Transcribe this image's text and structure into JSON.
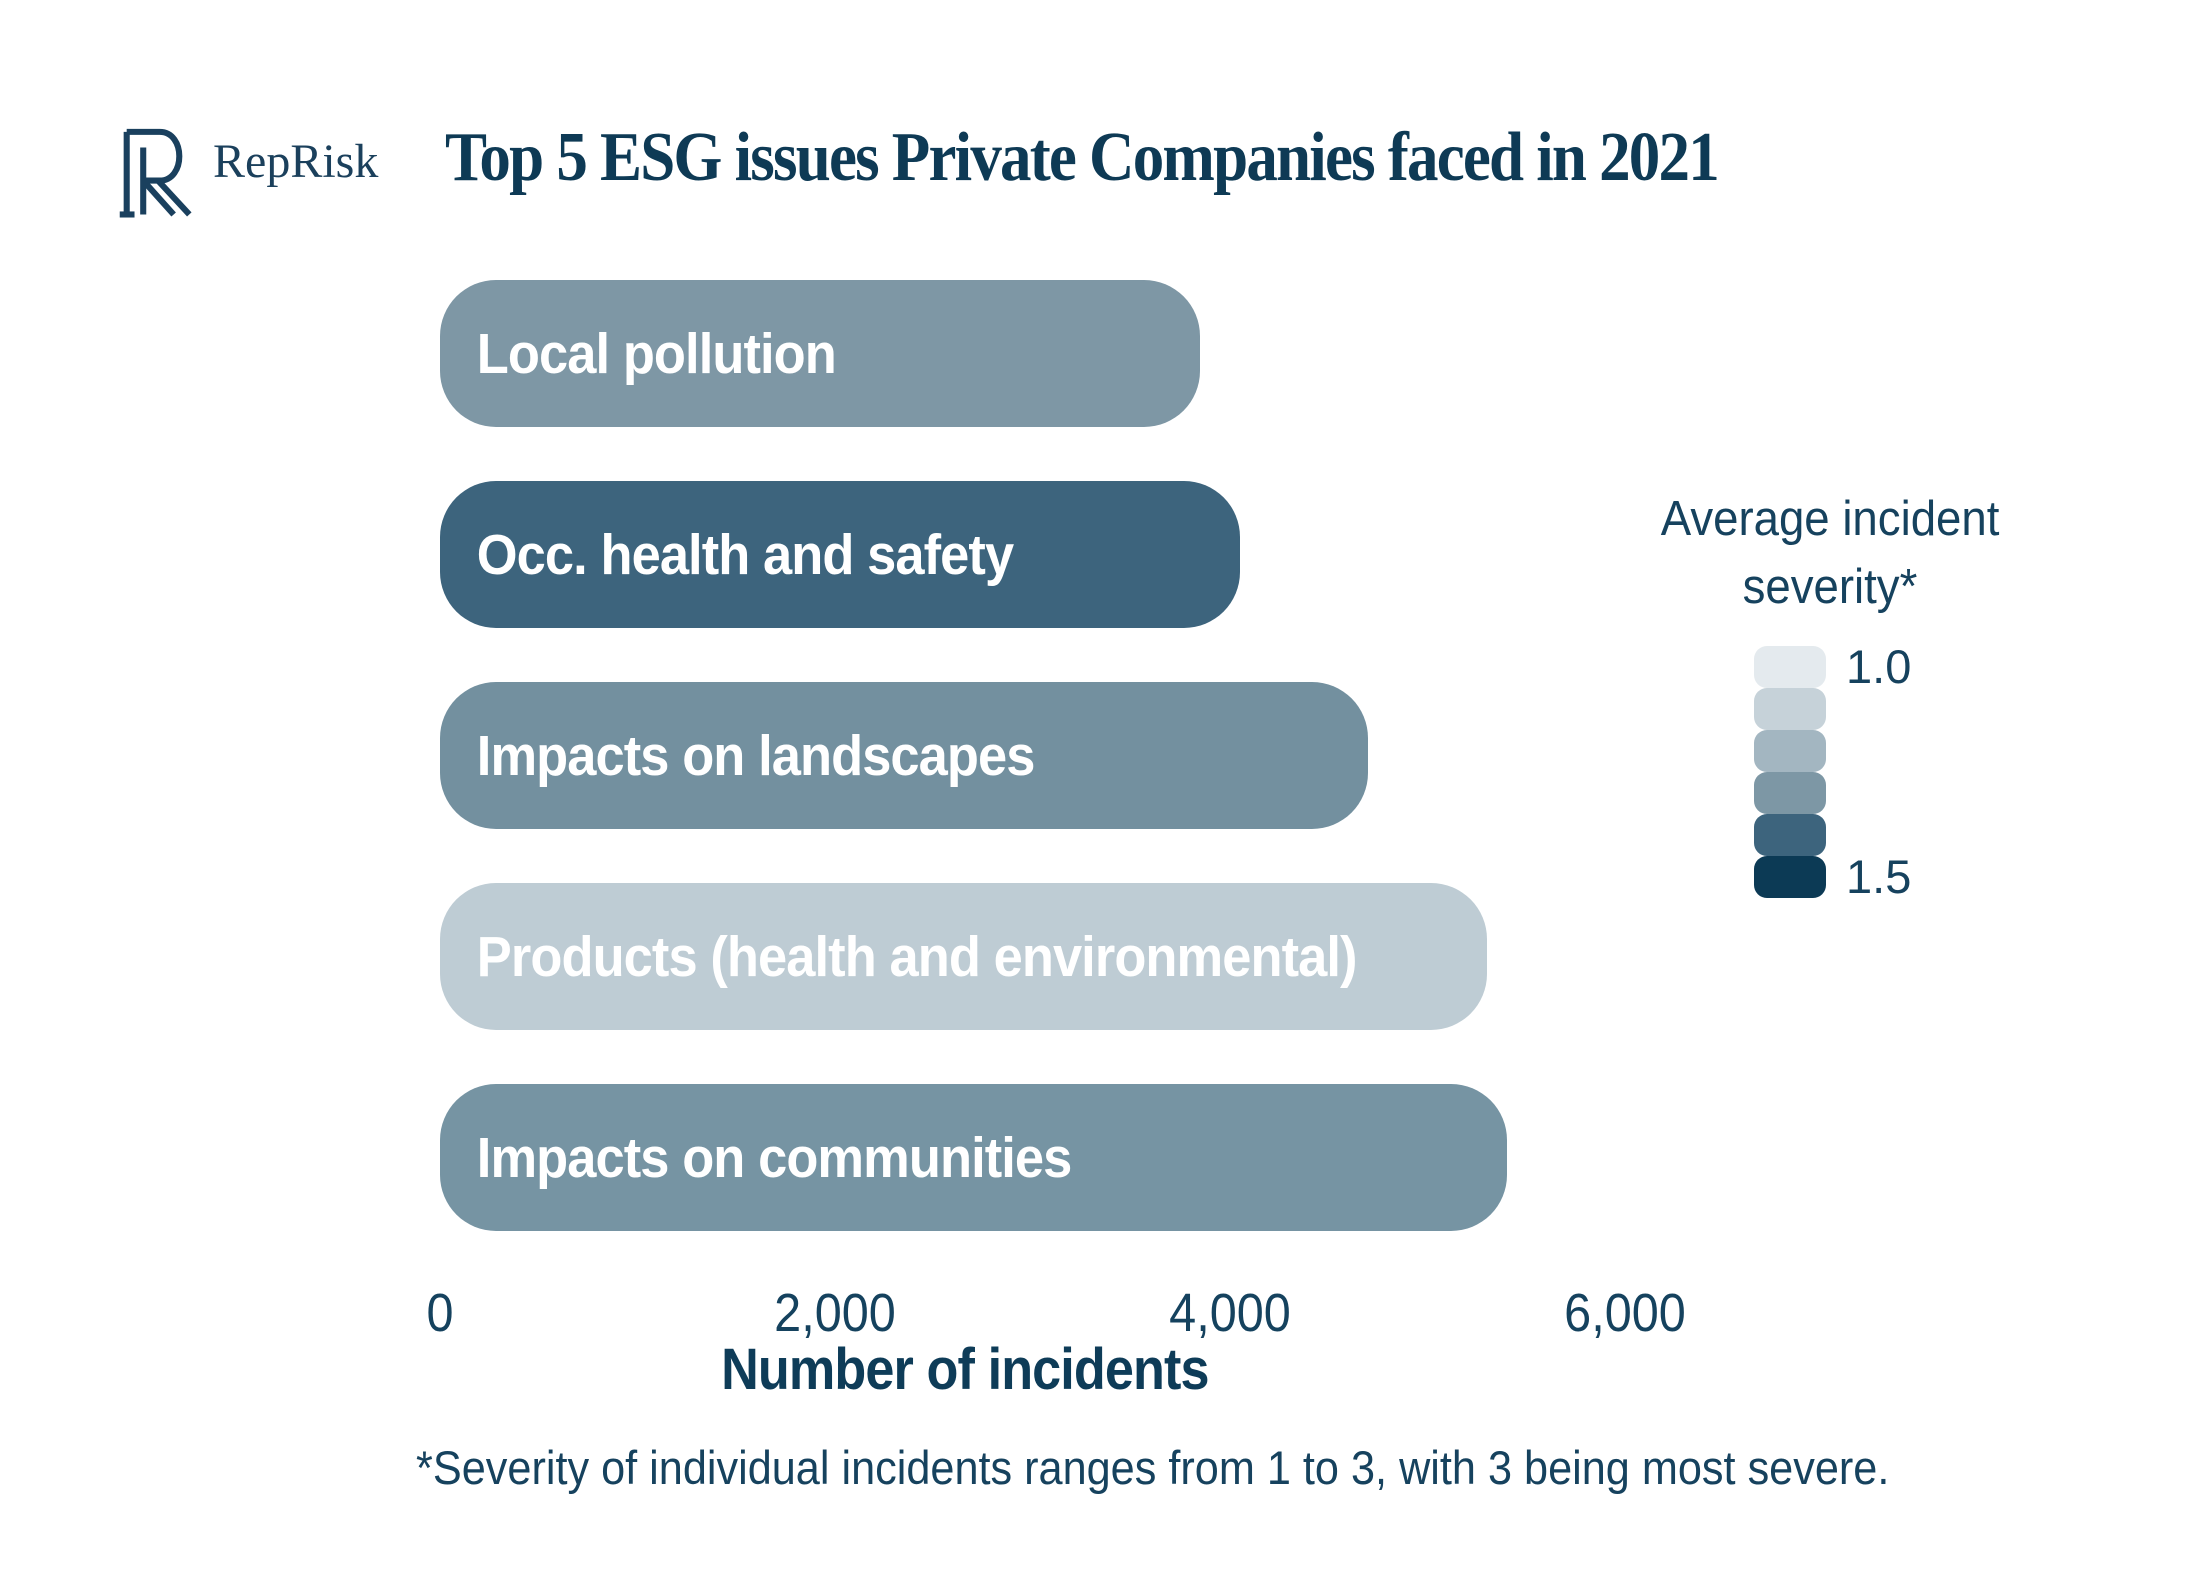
{
  "header": {
    "logo_mark": "reprisk-logo-mark",
    "logo_text": "RepRisk",
    "title": "Top 5 ESG issues Private Companies faced in 2021"
  },
  "colors": {
    "text_navy": "#0e3a55",
    "text_navy_light": "#16425e",
    "background": "#ffffff"
  },
  "chart_data": {
    "type": "bar",
    "orientation": "horizontal",
    "title": "Top 5 ESG issues Private Companies faced in 2021",
    "categories": [
      "Local pollution",
      "Occ. health and safety",
      "Impacts on landscapes",
      "Products (health and environmental)",
      "Impacts on communities"
    ],
    "values": [
      3850,
      4050,
      4700,
      5300,
      5400
    ],
    "values_note": "approximate values read from axis gridlines",
    "bar_colors": [
      "#7e97a5",
      "#3d647d",
      "#73909f",
      "#beccd4",
      "#7694a3"
    ],
    "xlabel": "Number of incidents",
    "xlim": [
      0,
      6000
    ],
    "x_ticks": [
      0,
      2000,
      4000,
      6000
    ],
    "x_tick_labels": [
      "0",
      "2,000",
      "4,000",
      "6,000"
    ],
    "grid": false,
    "legend": {
      "position": "right",
      "title_line1": "Average incident",
      "title_line2": "severity*",
      "max_label": "1.0",
      "min_label": "1.5",
      "scale_colors_top_to_bottom": [
        "#e4eaee",
        "#c6d2d9",
        "#a3b6c1",
        "#7d97a5",
        "#3d647d",
        "#0c3a55"
      ]
    },
    "footnote": "*Severity of individual incidents ranges from 1 to 3, with 3 being most severe."
  }
}
